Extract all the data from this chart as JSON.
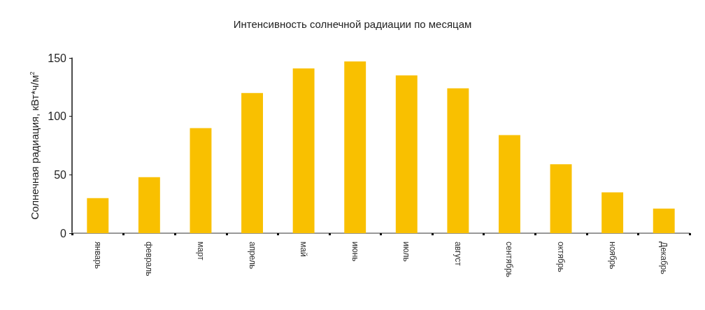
{
  "chart_data": {
    "type": "bar",
    "title": "Интенсивность солнечной радиации по месяцам",
    "ylabel": "Солнечная радиация, кВт*ч/м$^{2}$",
    "categories": [
      "январь",
      "февраль",
      "март",
      "апрель",
      "май",
      "июнь",
      "июль",
      "август",
      "сентябрь",
      "октябрь",
      "ноябрь",
      "Декабрь"
    ],
    "values": [
      30,
      48,
      90,
      120,
      141,
      147,
      135,
      124,
      84,
      59,
      35,
      21
    ],
    "color": "#f9c000",
    "ylim": [
      0,
      150
    ],
    "yticks": [
      0,
      50,
      100,
      150
    ],
    "grid": false
  }
}
